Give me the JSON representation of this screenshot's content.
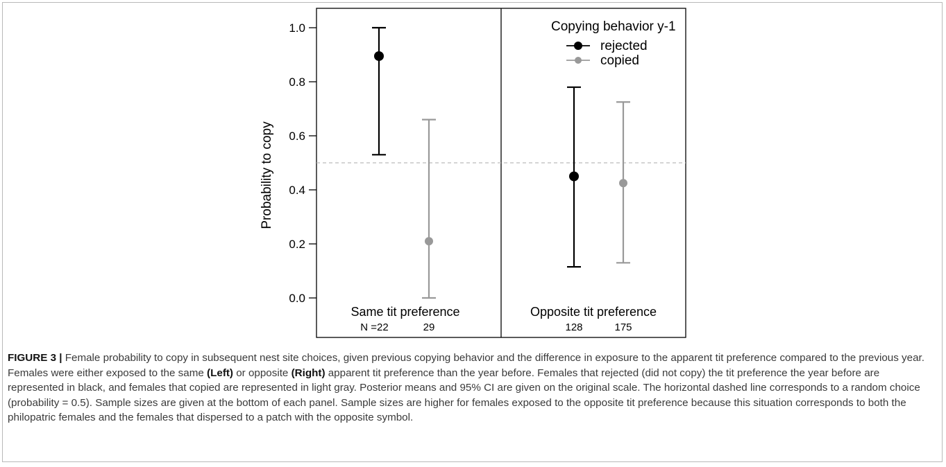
{
  "chart_data": {
    "type": "scatter",
    "ylabel": "Probability to copy",
    "ylim": [
      0,
      1
    ],
    "yticks": [
      0.0,
      0.2,
      0.4,
      0.6,
      0.8,
      1.0
    ],
    "ytick_labels": [
      "0.0",
      "0.2",
      "0.4",
      "0.6",
      "0.8",
      "1.0"
    ],
    "reference_line": {
      "y": 0.5,
      "style": "dashed",
      "color": "#bbbbbb"
    },
    "legend": {
      "title": "Copying behavior y-1",
      "position": "top-right",
      "entries": [
        {
          "label": "rejected",
          "color": "#000000"
        },
        {
          "label": "copied",
          "color": "#999999"
        }
      ]
    },
    "panels": [
      {
        "label": "Same tit preference",
        "n_prefix": "N = ",
        "points": [
          {
            "series": "rejected",
            "color": "#000000",
            "mean": 0.895,
            "lower": 0.53,
            "upper": 1.0,
            "n": "22"
          },
          {
            "series": "copied",
            "color": "#999999",
            "mean": 0.21,
            "lower": 0.0,
            "upper": 0.66,
            "n": "29"
          }
        ]
      },
      {
        "label": "Opposite tit preference",
        "n_prefix": "",
        "points": [
          {
            "series": "rejected",
            "color": "#000000",
            "mean": 0.45,
            "lower": 0.115,
            "upper": 0.78,
            "n": "128"
          },
          {
            "series": "copied",
            "color": "#999999",
            "mean": 0.425,
            "lower": 0.13,
            "upper": 0.725,
            "n": "175"
          }
        ]
      }
    ]
  },
  "caption": {
    "label": "FIGURE 3 |",
    "t1": " Female probability to copy in subsequent nest site choices, given previous copying behavior and the difference in exposure to the apparent tit preference compared to the previous year. Females were either exposed to the same ",
    "b1": "(Left)",
    "t2": " or opposite ",
    "b2": "(Right)",
    "t3": " apparent tit preference than the year before. Females that rejected (did not copy) the tit preference the year before are represented in black, and females that copied are represented in light gray. Posterior means and 95% CI are given on the original scale. The horizontal dashed line corresponds to a random choice (probability = 0.5). Sample sizes are given at the bottom of each panel. Sample sizes are higher for females exposed to the opposite tit preference because this situation corresponds to both the philopatric females and the females that dispersed to a patch with the opposite symbol."
  }
}
